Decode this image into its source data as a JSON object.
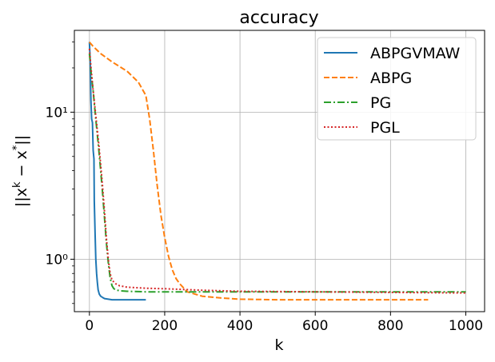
{
  "chart_data": {
    "type": "line",
    "title": "accuracy",
    "xlabel": "k",
    "ylabel": "||x^k − x^*||",
    "xlim": [
      -40,
      1050
    ],
    "ylim": [
      0.44,
      36
    ],
    "yscale": "log",
    "grid": true,
    "legend_position": "top-right",
    "x_ticks": [
      0,
      200,
      400,
      600,
      800,
      1000
    ],
    "y_ticks": [
      {
        "value": 1,
        "label": "10⁰"
      },
      {
        "value": 10,
        "label": "10¹"
      }
    ],
    "series": [
      {
        "name": "ABPGVMAW",
        "color": "#1f77b4",
        "dash": "solid",
        "x": [
          0,
          2,
          4,
          6,
          8,
          10,
          12,
          13,
          15,
          17,
          19,
          21,
          23,
          26,
          30,
          35,
          40,
          50,
          60,
          80,
          100,
          120,
          150
        ],
        "y": [
          30,
          22,
          12,
          9,
          8.5,
          5.5,
          4.8,
          2.5,
          1.5,
          1.0,
          0.8,
          0.7,
          0.62,
          0.58,
          0.56,
          0.55,
          0.54,
          0.535,
          0.53,
          0.53,
          0.53,
          0.53,
          0.53
        ]
      },
      {
        "name": "ABPG",
        "color": "#ff7f0e",
        "dash": "dashed",
        "x": [
          0,
          10,
          30,
          60,
          100,
          130,
          150,
          160,
          170,
          180,
          190,
          200,
          210,
          220,
          230,
          240,
          260,
          300,
          350,
          400,
          500,
          600,
          700,
          800,
          900
        ],
        "y": [
          30,
          28,
          25,
          22,
          19,
          16,
          13,
          9,
          5.5,
          3.2,
          2.0,
          1.4,
          1.05,
          0.85,
          0.74,
          0.68,
          0.6,
          0.56,
          0.545,
          0.535,
          0.53,
          0.53,
          0.53,
          0.53,
          0.53
        ]
      },
      {
        "name": "PG",
        "color": "#2ca02c",
        "dash": "dashdot",
        "x": [
          0,
          5,
          10,
          15,
          20,
          25,
          30,
          35,
          40,
          45,
          50,
          55,
          60,
          65,
          70,
          80,
          100,
          150,
          200,
          300,
          400,
          600,
          800,
          1000
        ],
        "y": [
          25,
          18,
          14,
          10,
          7.5,
          5.5,
          4.0,
          2.8,
          1.9,
          1.3,
          0.95,
          0.75,
          0.66,
          0.63,
          0.62,
          0.61,
          0.605,
          0.6,
          0.6,
          0.6,
          0.6,
          0.6,
          0.6,
          0.6
        ]
      },
      {
        "name": "PGL",
        "color": "#d62728",
        "dash": "dotted",
        "x": [
          0,
          5,
          10,
          15,
          20,
          25,
          30,
          35,
          40,
          45,
          50,
          55,
          60,
          70,
          80,
          100,
          150,
          200,
          300,
          400,
          600,
          800,
          1000
        ],
        "y": [
          27,
          19,
          14,
          10.5,
          8,
          6,
          4.4,
          3.1,
          2.1,
          1.4,
          1.0,
          0.8,
          0.72,
          0.68,
          0.66,
          0.645,
          0.635,
          0.63,
          0.615,
          0.605,
          0.6,
          0.595,
          0.59
        ]
      }
    ]
  }
}
